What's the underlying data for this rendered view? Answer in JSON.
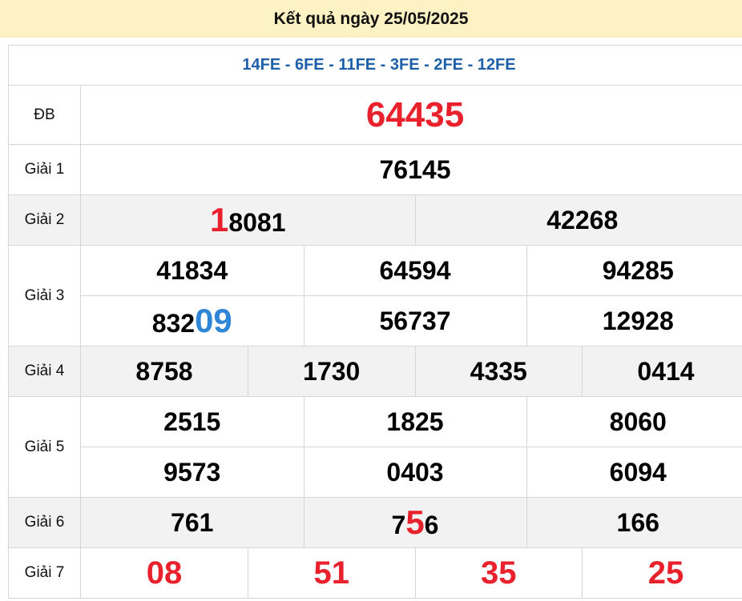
{
  "header": {
    "title": "Kết quả ngày 25/05/2025"
  },
  "codes": "14FE - 6FE - 11FE - 3FE - 2FE - 12FE",
  "colors": {
    "red": "#e8212c",
    "blue": "#2f86d6",
    "code_blue": "#1d5fa8",
    "header_bg": "#fdf2c4",
    "row_gray": "#f2f2f2"
  },
  "prizes": [
    {
      "label": "ĐB",
      "rows": [
        [
          {
            "pre": "64435"
          }
        ]
      ]
    },
    {
      "label": "Giải 1",
      "rows": [
        [
          {
            "pre": "76145"
          }
        ]
      ]
    },
    {
      "label": "Giải 2",
      "rows": [
        [
          {
            "pre": "",
            "hl": "1",
            "post": "8081",
            "hl_color": "#e8212c"
          },
          {
            "pre": "42268"
          }
        ]
      ]
    },
    {
      "label": "Giải 3",
      "rows": [
        [
          {
            "pre": "41834"
          },
          {
            "pre": "64594"
          },
          {
            "pre": "94285"
          }
        ],
        [
          {
            "pre": "832",
            "hl": "09",
            "post": "",
            "hl_color": "#2f86d6"
          },
          {
            "pre": "56737"
          },
          {
            "pre": "12928"
          }
        ]
      ]
    },
    {
      "label": "Giải 4",
      "rows": [
        [
          {
            "pre": "8758"
          },
          {
            "pre": "1730"
          },
          {
            "pre": "4335"
          },
          {
            "pre": "0414"
          }
        ]
      ]
    },
    {
      "label": "Giải 5",
      "rows": [
        [
          {
            "pre": "2515"
          },
          {
            "pre": "1825"
          },
          {
            "pre": "8060"
          }
        ],
        [
          {
            "pre": "9573"
          },
          {
            "pre": "0403"
          },
          {
            "pre": "6094"
          }
        ]
      ]
    },
    {
      "label": "Giải 6",
      "rows": [
        [
          {
            "pre": "761"
          },
          {
            "pre": "7",
            "hl": "5",
            "post": "6",
            "hl_color": "#e8212c"
          },
          {
            "pre": "166"
          }
        ]
      ]
    },
    {
      "label": "Giải 7",
      "rows": [
        [
          {
            "pre": "08"
          },
          {
            "pre": "51"
          },
          {
            "pre": "35"
          },
          {
            "pre": "25"
          }
        ]
      ]
    }
  ]
}
